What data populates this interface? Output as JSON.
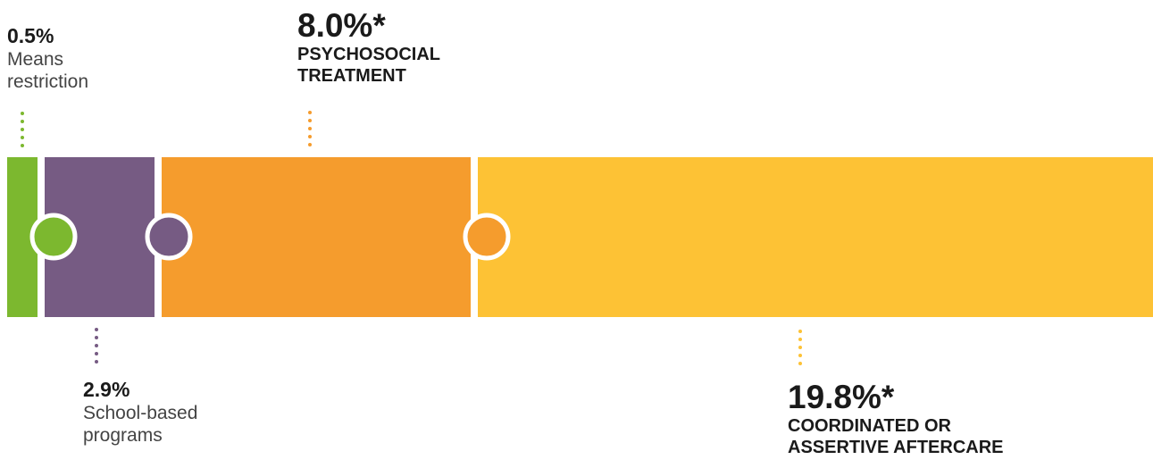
{
  "colors": {
    "means_restriction": "#7cb82f",
    "school_based": "#765b83",
    "psychosocial": "#f59c2d",
    "aftercare": "#fdc235"
  },
  "chart_data": {
    "type": "bar",
    "categories": [
      "Means restriction",
      "School-based programs",
      "Psychosocial treatment",
      "Coordinated or assertive aftercare"
    ],
    "values": [
      0.5,
      2.9,
      8.0,
      19.8
    ],
    "unit": "%",
    "labels": [
      {
        "value_text": "0.5%",
        "name_lines": [
          "Means",
          "restriction"
        ]
      },
      {
        "value_text": "2.9%",
        "name_lines": [
          "School-based",
          "programs"
        ]
      },
      {
        "value_text": "8.0%*",
        "name_lines": [
          "PSYCHOSOCIAL",
          "TREATMENT"
        ]
      },
      {
        "value_text": "19.8%*",
        "name_lines": [
          "COORDINATED OR",
          "ASSERTIVE AFTERCARE"
        ]
      }
    ]
  }
}
